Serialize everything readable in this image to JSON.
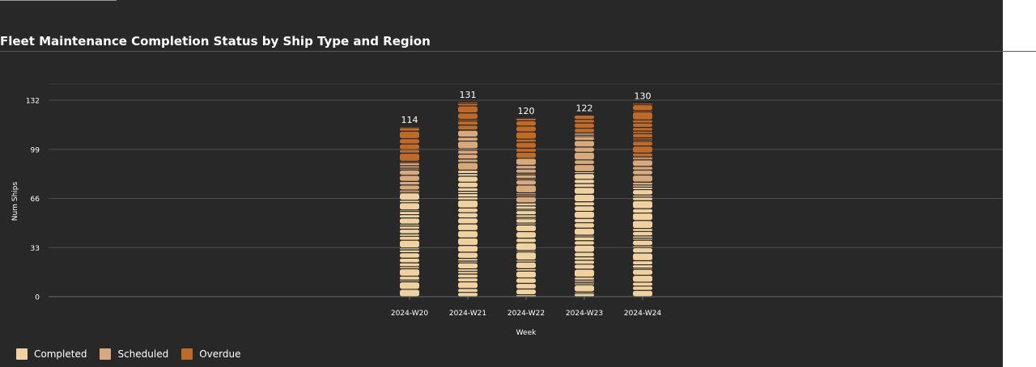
{
  "chart_data": {
    "type": "bar",
    "title": "Fleet Maintenance Completion Status by Ship Type and Region",
    "xlabel": "Week",
    "ylabel": "Num Ships",
    "ylim": [
      0,
      132
    ],
    "yticks": [
      0,
      33,
      66,
      99,
      132
    ],
    "categories": [
      "2024-W20",
      "2024-W21",
      "2024-W22",
      "2024-W23",
      "2024-W24"
    ],
    "totals": [
      114,
      131,
      120,
      122,
      130
    ],
    "series": [
      {
        "name": "Completed",
        "color": "#f0d2a0",
        "values": [
          70,
          85,
          63,
          84,
          75
        ]
      },
      {
        "name": "Scheduled",
        "color": "#d7a97c",
        "values": [
          20,
          27,
          30,
          26,
          19
        ]
      },
      {
        "name": "Overdue",
        "color": "#bf6a28",
        "values": [
          24,
          19,
          27,
          12,
          36
        ]
      }
    ],
    "legend_position": "bottom-left",
    "grid": true
  }
}
